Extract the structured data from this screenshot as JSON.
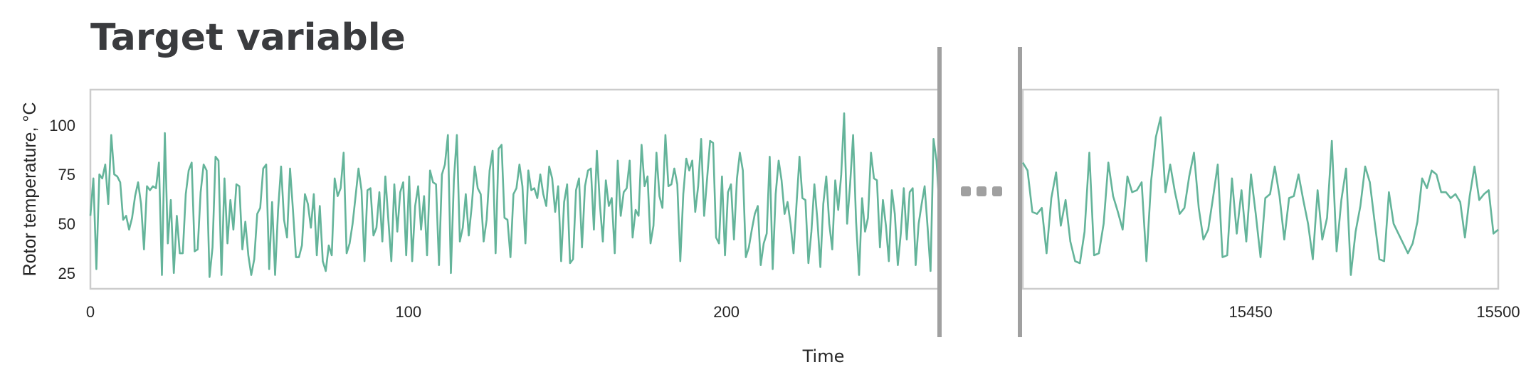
{
  "chart_data": {
    "type": "line",
    "title": "Target variable",
    "xlabel": "Time",
    "ylabel": "Rotor temperature, °C",
    "ylim": [
      17,
      118
    ],
    "yticks": [
      "25",
      "50",
      "75",
      "100"
    ],
    "grid": false,
    "color": "#64b49a",
    "break_color": "#a0a0a0",
    "panels": [
      {
        "xlim": [
          0,
          267
        ],
        "xticks": [
          "0",
          "100",
          "200"
        ],
        "values": [
          54,
          73,
          27,
          75,
          73,
          80,
          60,
          95,
          75,
          74,
          71,
          52,
          54,
          47,
          53,
          64,
          71,
          60,
          37,
          69,
          67,
          69,
          68,
          81,
          24,
          96,
          40,
          62,
          25,
          54,
          35,
          35,
          65,
          77,
          81,
          36,
          37,
          66,
          80,
          77,
          23,
          38,
          84,
          82,
          24,
          73,
          40,
          62,
          47,
          70,
          69,
          37,
          51,
          34,
          24,
          32,
          55,
          58,
          78,
          80,
          27,
          61,
          24,
          57,
          79,
          52,
          43,
          78,
          57,
          33,
          33,
          39,
          65,
          60,
          48,
          65,
          34,
          59,
          31,
          26,
          39,
          34,
          73,
          64,
          68,
          86,
          35,
          40,
          50,
          64,
          78,
          67,
          31,
          67,
          68,
          44,
          48,
          66,
          41,
          74,
          52,
          31,
          70,
          46,
          66,
          71,
          34,
          74,
          31,
          59,
          69,
          47,
          64,
          34,
          77,
          71,
          70,
          29,
          75,
          80,
          95,
          25,
          72,
          95,
          41,
          48,
          65,
          44,
          59,
          79,
          68,
          65,
          41,
          52,
          77,
          87,
          35,
          88,
          90,
          53,
          52,
          33,
          65,
          68,
          80,
          69,
          40,
          77,
          67,
          68,
          63,
          75,
          65,
          59,
          79,
          73,
          56,
          69,
          31,
          61,
          70,
          30,
          32,
          67,
          73,
          38,
          69,
          77,
          78,
          47,
          87,
          60,
          41,
          72,
          59,
          63,
          35,
          82,
          54,
          66,
          68,
          82,
          43,
          57,
          54,
          90,
          69,
          74,
          40,
          49,
          86,
          64,
          58,
          95,
          69,
          70,
          78,
          70,
          31,
          65,
          83,
          77,
          82,
          56,
          69,
          93,
          54,
          73,
          92,
          91,
          43,
          40,
          74,
          34,
          66,
          70,
          42,
          73,
          86,
          77,
          33,
          38,
          47,
          55,
          59,
          29,
          40,
          45,
          84,
          27,
          65,
          82,
          72,
          55,
          61,
          50,
          35,
          60,
          84,
          63,
          62,
          30,
          46,
          70,
          52,
          28,
          60,
          74,
          50,
          37,
          72,
          57,
          75,
          106,
          50,
          70,
          95,
          51,
          24,
          63,
          46,
          53,
          86,
          73,
          72,
          38,
          62,
          49,
          31,
          67,
          55,
          29,
          45,
          68,
          42,
          66,
          68,
          29,
          50,
          60,
          69,
          48,
          26,
          93,
          82,
          57
        ]
      },
      {
        "xlim": [
          15404,
          15500
        ],
        "xticks": [
          "15450",
          "15500"
        ],
        "values": [
          81,
          77,
          56,
          55,
          58,
          35,
          63,
          76,
          49,
          62,
          41,
          31,
          30,
          46,
          86,
          34,
          35,
          50,
          81,
          64,
          56,
          47,
          74,
          66,
          67,
          71,
          31,
          72,
          94,
          104,
          66,
          80,
          66,
          55,
          58,
          74,
          86,
          58,
          42,
          47,
          63,
          80,
          33,
          34,
          73,
          45,
          67,
          41,
          75,
          55,
          33,
          63,
          65,
          79,
          64,
          42,
          63,
          64,
          75,
          62,
          50,
          32,
          67,
          42,
          53,
          92,
          36,
          62,
          78,
          24,
          46,
          59,
          79,
          71,
          51,
          32,
          31,
          66,
          50,
          45,
          40,
          35,
          40,
          51,
          73,
          68,
          77,
          75,
          66,
          66,
          63,
          65,
          61,
          43,
          64,
          79,
          62,
          65,
          67,
          45,
          47
        ]
      }
    ]
  }
}
